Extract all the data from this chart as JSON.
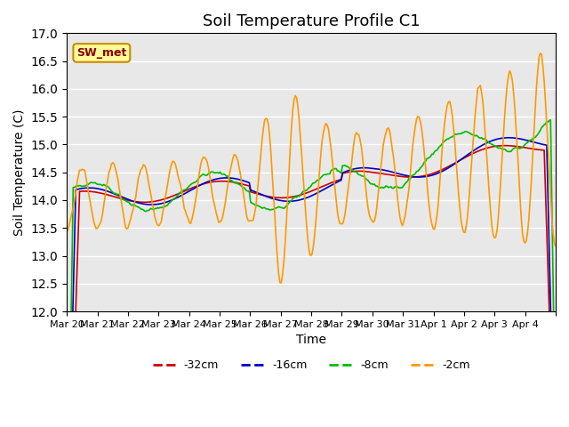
{
  "title": "Soil Temperature Profile C1",
  "xlabel": "Time",
  "ylabel": "Soil Temperature (C)",
  "ylim": [
    12.0,
    17.0
  ],
  "yticks": [
    12.0,
    12.5,
    13.0,
    13.5,
    14.0,
    14.5,
    15.0,
    15.5,
    16.0,
    16.5,
    17.0
  ],
  "background_color": "#e8e8e8",
  "legend_label": "SW_met",
  "legend_box_color": "#ffff99",
  "legend_box_edge": "#cc8800",
  "series_colors": {
    "-32cm": "#cc0000",
    "-16cm": "#0000cc",
    "-8cm": "#00bb00",
    "-2cm": "#ff9900"
  },
  "xtick_labels": [
    "Mar 20",
    "Mar 21",
    "Mar 22",
    "Mar 23",
    "Mar 24",
    "Mar 25",
    "Mar 26",
    "Mar 27",
    "Mar 28",
    "Mar 29",
    "Mar 30",
    "Mar 31",
    "Apr 1",
    "Apr 2",
    "Apr 3",
    "Apr 4",
    ""
  ],
  "n_days": 16,
  "samples_per_day": 24
}
